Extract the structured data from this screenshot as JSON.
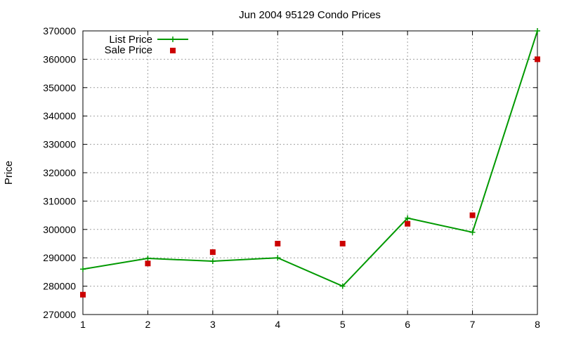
{
  "chart_data": {
    "type": "line",
    "title": "Jun 2004 95129 Condo Prices",
    "xlabel": "",
    "ylabel": "Price",
    "x": [
      1,
      2,
      3,
      4,
      5,
      6,
      7,
      8
    ],
    "xlim": [
      1,
      8
    ],
    "ylim": [
      270000,
      370000
    ],
    "xticks": [
      "1",
      "2",
      "3",
      "4",
      "5",
      "6",
      "7",
      "8"
    ],
    "yticks": [
      "270000",
      "280000",
      "290000",
      "300000",
      "310000",
      "320000",
      "330000",
      "340000",
      "350000",
      "360000",
      "370000"
    ],
    "grid": true,
    "legend_position": "top-left",
    "series": [
      {
        "name": "List Price",
        "style": "line-with-plus-markers",
        "color": "#009900",
        "values": [
          286000,
          289800,
          288800,
          290000,
          280000,
          304000,
          299000,
          370000
        ]
      },
      {
        "name": "Sale Price",
        "style": "square-points",
        "color": "#cc0000",
        "values": [
          277000,
          288000,
          292000,
          295000,
          295000,
          302000,
          305000,
          360000
        ]
      }
    ]
  }
}
